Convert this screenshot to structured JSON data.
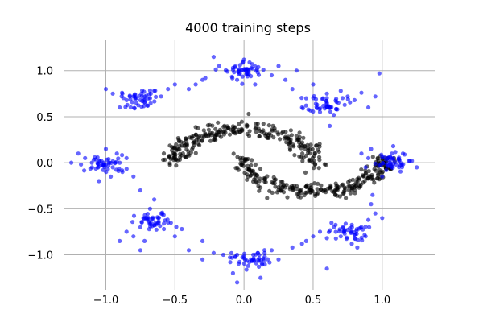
{
  "chart_data": {
    "type": "scatter",
    "title": "4000 training steps",
    "xlabel": "",
    "ylabel": "",
    "xlim": [
      -1.3,
      1.38
    ],
    "ylim": [
      -1.38,
      1.33
    ],
    "grid": true,
    "xticks": [
      -1.0,
      -0.5,
      0.0,
      0.5,
      1.0
    ],
    "xtick_labels": [
      "−1.0",
      "−0.5",
      "0.0",
      "0.5",
      "1.0"
    ],
    "yticks": [
      1.0,
      0.5,
      0.0,
      -0.5,
      -1.0
    ],
    "ytick_labels": [
      "1.0",
      "0.5",
      "0.0",
      "−0.5",
      "−1.0"
    ],
    "colors": {
      "generated": "#0000ff",
      "data": "#000000"
    },
    "series": [
      {
        "color": "#0000ff",
        "description": "points clustered around 8 ring modes",
        "mode_centers": [
          [
            0.0,
            1.0
          ],
          [
            0.6,
            0.65
          ],
          [
            1.05,
            0.0
          ],
          [
            0.75,
            -0.75
          ],
          [
            0.05,
            -1.05
          ],
          [
            -0.65,
            -0.65
          ],
          [
            -1.0,
            -0.02
          ],
          [
            -0.75,
            0.7
          ]
        ],
        "points": [
          [
            -0.03,
            0.97
          ],
          [
            0.02,
            1.02
          ],
          [
            0.05,
            0.94
          ],
          [
            -0.08,
            1.03
          ],
          [
            0.1,
            0.98
          ],
          [
            0.06,
            1.07
          ],
          [
            -0.05,
            0.9
          ],
          [
            0.14,
            1.01
          ],
          [
            -0.12,
            0.99
          ],
          [
            0.0,
            1.12
          ],
          [
            0.2,
            0.95
          ],
          [
            -0.18,
            1.05
          ],
          [
            0.08,
            0.85
          ],
          [
            0.25,
            1.05
          ],
          [
            0.3,
            0.9
          ],
          [
            -0.28,
            0.92
          ],
          [
            0.38,
            1.0
          ],
          [
            0.98,
            0.97
          ],
          [
            -0.22,
            1.15
          ],
          [
            0.52,
            0.64
          ],
          [
            0.57,
            0.7
          ],
          [
            0.62,
            0.6
          ],
          [
            0.6,
            0.75
          ],
          [
            0.67,
            0.66
          ],
          [
            0.45,
            0.7
          ],
          [
            0.7,
            0.78
          ],
          [
            0.75,
            0.72
          ],
          [
            0.55,
            0.55
          ],
          [
            0.8,
            0.68
          ],
          [
            0.42,
            0.6
          ],
          [
            0.65,
            0.52
          ],
          [
            0.85,
            0.76
          ],
          [
            0.9,
            0.6
          ],
          [
            0.5,
            0.85
          ],
          [
            0.35,
            0.8
          ],
          [
            0.62,
            0.4
          ],
          [
            0.95,
            0.72
          ],
          [
            1.05,
            0.03
          ],
          [
            1.1,
            -0.02
          ],
          [
            1.0,
            0.06
          ],
          [
            1.07,
            0.1
          ],
          [
            1.12,
            0.04
          ],
          [
            0.95,
            -0.01
          ],
          [
            1.03,
            -0.08
          ],
          [
            1.15,
            0.1
          ],
          [
            0.9,
            0.05
          ],
          [
            1.2,
            0.02
          ],
          [
            0.88,
            -0.05
          ],
          [
            1.08,
            0.18
          ],
          [
            0.85,
            0.1
          ],
          [
            1.25,
            -0.05
          ],
          [
            0.92,
            0.15
          ],
          [
            1.0,
            -0.15
          ],
          [
            0.93,
            -0.35
          ],
          [
            0.75,
            -0.73
          ],
          [
            0.8,
            -0.78
          ],
          [
            0.7,
            -0.8
          ],
          [
            0.85,
            -0.7
          ],
          [
            0.9,
            -0.62
          ],
          [
            0.65,
            -0.7
          ],
          [
            0.78,
            -0.88
          ],
          [
            0.95,
            -0.55
          ],
          [
            0.6,
            -0.82
          ],
          [
            0.88,
            -0.8
          ],
          [
            0.55,
            -0.75
          ],
          [
            0.82,
            -0.92
          ],
          [
            0.5,
            -0.8
          ],
          [
            1.0,
            -0.6
          ],
          [
            0.45,
            -0.85
          ],
          [
            0.92,
            -0.45
          ],
          [
            0.0,
            -1.02
          ],
          [
            0.05,
            -1.05
          ],
          [
            -0.05,
            -1.0
          ],
          [
            0.1,
            -0.98
          ],
          [
            -0.1,
            -1.08
          ],
          [
            0.03,
            -1.12
          ],
          [
            0.15,
            -1.02
          ],
          [
            -0.15,
            -1.0
          ],
          [
            0.2,
            -0.95
          ],
          [
            -0.08,
            -1.2
          ],
          [
            0.25,
            -1.05
          ],
          [
            -0.22,
            -0.98
          ],
          [
            0.35,
            -0.92
          ],
          [
            0.42,
            -0.88
          ],
          [
            -0.3,
            -1.05
          ],
          [
            0.12,
            -1.25
          ],
          [
            0.6,
            -1.15
          ],
          [
            -0.05,
            -1.3
          ],
          [
            -0.62,
            -0.6
          ],
          [
            -0.65,
            -0.68
          ],
          [
            -0.6,
            -0.55
          ],
          [
            -0.7,
            -0.62
          ],
          [
            -0.58,
            -0.72
          ],
          [
            -0.55,
            -0.65
          ],
          [
            -0.75,
            -0.7
          ],
          [
            -0.68,
            -0.5
          ],
          [
            -0.8,
            -0.8
          ],
          [
            -0.5,
            -0.8
          ],
          [
            -0.85,
            -0.75
          ],
          [
            -0.72,
            -0.85
          ],
          [
            -0.45,
            -0.72
          ],
          [
            -0.9,
            -0.85
          ],
          [
            -0.4,
            -0.95
          ],
          [
            -0.3,
            -0.85
          ],
          [
            -0.75,
            -0.95
          ],
          [
            -0.65,
            -0.4
          ],
          [
            -1.0,
            -0.02
          ],
          [
            -0.98,
            0.04
          ],
          [
            -1.05,
            0.02
          ],
          [
            -0.95,
            -0.05
          ],
          [
            -1.02,
            -0.08
          ],
          [
            -1.08,
            0.06
          ],
          [
            -0.9,
            0.0
          ],
          [
            -1.1,
            -0.05
          ],
          [
            -0.92,
            0.1
          ],
          [
            -1.15,
            0.05
          ],
          [
            -0.88,
            -0.1
          ],
          [
            -1.0,
            0.15
          ],
          [
            -1.18,
            -0.02
          ],
          [
            -0.85,
            0.05
          ],
          [
            -1.05,
            -0.2
          ],
          [
            -1.2,
            0.1
          ],
          [
            -1.25,
            0.0
          ],
          [
            -0.8,
            -0.15
          ],
          [
            -0.75,
            -0.3
          ],
          [
            -0.75,
            0.68
          ],
          [
            -0.72,
            0.72
          ],
          [
            -0.78,
            0.65
          ],
          [
            -0.7,
            0.62
          ],
          [
            -0.8,
            0.72
          ],
          [
            -0.68,
            0.7
          ],
          [
            -0.85,
            0.68
          ],
          [
            -0.65,
            0.78
          ],
          [
            -0.82,
            0.6
          ],
          [
            -0.6,
            0.72
          ],
          [
            -0.88,
            0.75
          ],
          [
            -0.55,
            0.8
          ],
          [
            -0.9,
            0.6
          ],
          [
            -0.5,
            0.85
          ],
          [
            -0.95,
            0.75
          ],
          [
            -0.4,
            0.8
          ],
          [
            -0.35,
            0.85
          ],
          [
            -1.0,
            0.8
          ],
          [
            -0.3,
            0.9
          ]
        ]
      },
      {
        "color": "#000000",
        "description": "two interleaved moons",
        "upper_moon": {
          "center": [
            0.0,
            0.0
          ],
          "radius": 0.5,
          "from_deg": 0,
          "to_deg": 180
        },
        "lower_moon": {
          "center": [
            0.5,
            0.05
          ],
          "radius": 0.5,
          "from_deg": 180,
          "to_deg": 360
        },
        "points_per_moon": 260,
        "noise": 0.045
      }
    ]
  }
}
